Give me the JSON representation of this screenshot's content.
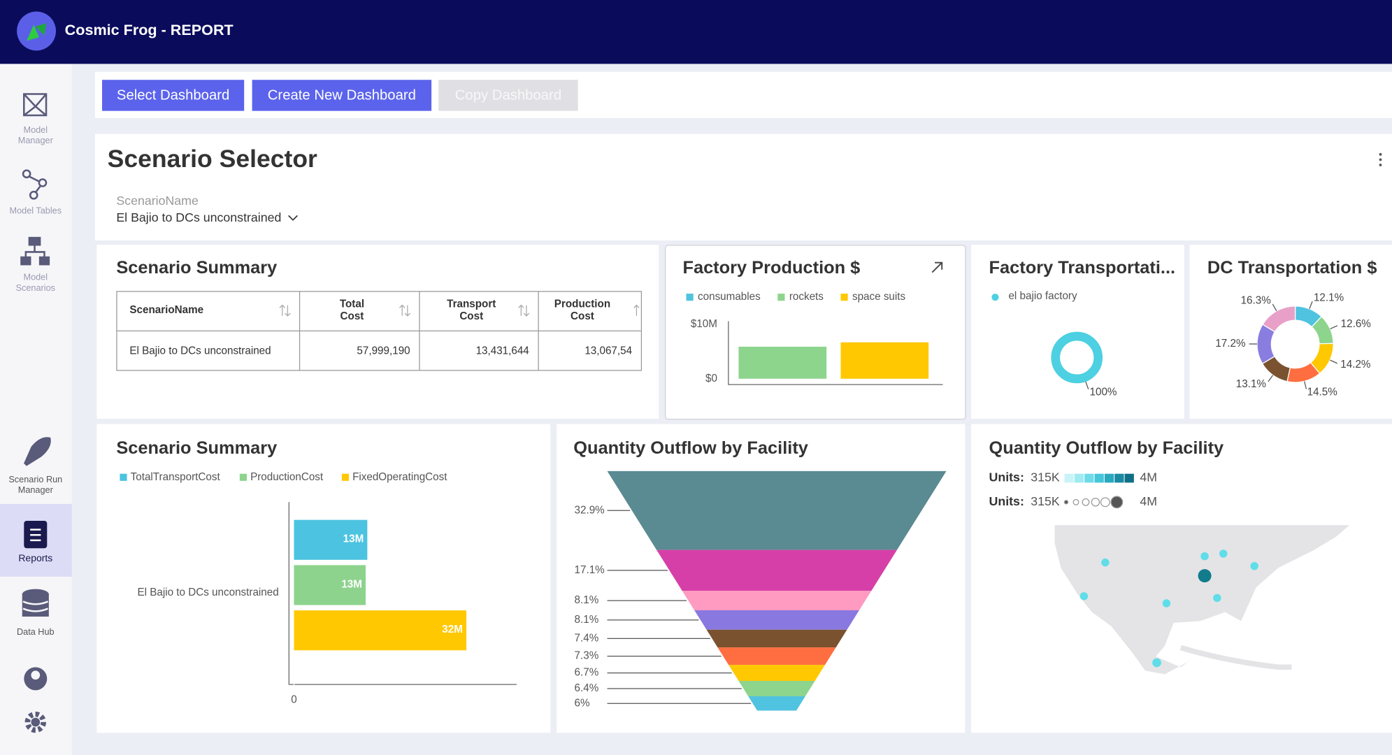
{
  "header": {
    "title": "Cosmic Frog - REPORT"
  },
  "sidebar": [
    {
      "lines": [
        "Model",
        "Manager"
      ]
    },
    {
      "lines": [
        "Model Tables"
      ]
    },
    {
      "lines": [
        "Model",
        "Scenarios"
      ]
    },
    {
      "lines": [
        "Scenario Run",
        "Manager"
      ]
    },
    {
      "lines": [
        "Reports"
      ],
      "active": true
    },
    {
      "lines": [
        "Data Hub"
      ]
    }
  ],
  "toolbar": [
    {
      "label": "Select Dashboard"
    },
    {
      "label": "Create New Dashboard"
    },
    {
      "label": "Copy Dashboard",
      "disabled": true
    }
  ],
  "scenario_selector": {
    "title": "Scenario Selector",
    "field_label": "ScenarioName",
    "field_value": "El Bajio to DCs unconstrained"
  },
  "scenario_summary_table": {
    "title": "Scenario Summary",
    "columns": [
      [
        "ScenarioName"
      ],
      [
        "Total",
        "Cost"
      ],
      [
        "Transport",
        "Cost"
      ],
      [
        "Production",
        "Cost"
      ]
    ],
    "rows": [
      [
        "El Bajio to DCs unconstrained",
        "57,999,190",
        "13,431,644",
        "13,067,54"
      ]
    ]
  },
  "chart_data": [
    {
      "type": "bar",
      "title": "Factory Production $",
      "categories": [
        "consumables",
        "rockets",
        "space suits"
      ],
      "values": [
        null,
        5900000,
        6700000
      ],
      "colors": [
        "#4fc3e0",
        "#8dd48d",
        "#ffc800"
      ],
      "ylim": [
        -1000000,
        10600000
      ],
      "yticks": [
        {
          "value": 0,
          "label": "$0"
        },
        {
          "value": 10000000,
          "label": "$10M"
        }
      ]
    },
    {
      "type": "donut",
      "title": "Factory Transportati...",
      "labels": [
        "el bajio factory"
      ],
      "values": [
        100
      ],
      "value_labels": [
        "100%"
      ],
      "colors": [
        "#4dd0e1"
      ]
    },
    {
      "type": "donut",
      "title": "DC Transportation $",
      "values": [
        12.1,
        12.6,
        14.2,
        14.5,
        13.1,
        17.2,
        16.3
      ],
      "value_labels": [
        "12.1%",
        "12.6%",
        "14.2%",
        "14.5%",
        "13.1%",
        "17.2%",
        "16.3%"
      ],
      "colors": [
        "#4fc3e0",
        "#8dd48d",
        "#ffc800",
        "#ff6e40",
        "#7a5230",
        "#8a7de0",
        "#e8a0c8"
      ]
    },
    {
      "type": "hbar",
      "title": "Scenario Summary",
      "categories": [
        "El Bajio to DCs unconstrained"
      ],
      "series": [
        {
          "name": "TotalTransportCost",
          "color": "#4cc3e0",
          "values": [
            13400000
          ],
          "value_labels": [
            "13M"
          ]
        },
        {
          "name": "ProductionCost",
          "color": "#8dd38d",
          "values": [
            13100000
          ],
          "value_labels": [
            "13M"
          ]
        },
        {
          "name": "FixedOperatingCost",
          "color": "#ffc800",
          "values": [
            31500000
          ],
          "value_labels": [
            "32M"
          ]
        }
      ],
      "xlim": [
        -1000000,
        40700000
      ],
      "xticks": [
        0
      ]
    },
    {
      "type": "funnel",
      "title": "Quantity Outflow by Facility",
      "values": [
        32.9,
        17.1,
        8.1,
        8.1,
        7.4,
        7.3,
        6.7,
        6.4,
        6
      ],
      "value_labels": [
        "32.9%",
        "17.1%",
        "8.1%",
        "8.1%",
        "7.4%",
        "7.3%",
        "6.7%",
        "6.4%",
        "6%"
      ],
      "colors": [
        "#5a8a92",
        "#d63fa8",
        "#ff9ac0",
        "#8878e0",
        "#7a5230",
        "#ff6e40",
        "#ffc800",
        "#8dd48d",
        "#4fc3e0"
      ]
    }
  ],
  "map": {
    "title": "Quantity Outflow by Facility",
    "legends": [
      {
        "label": "Units:",
        "min": "315K",
        "max": "4M"
      },
      {
        "label": "Units:",
        "min": "315K",
        "max": "4M"
      }
    ]
  }
}
